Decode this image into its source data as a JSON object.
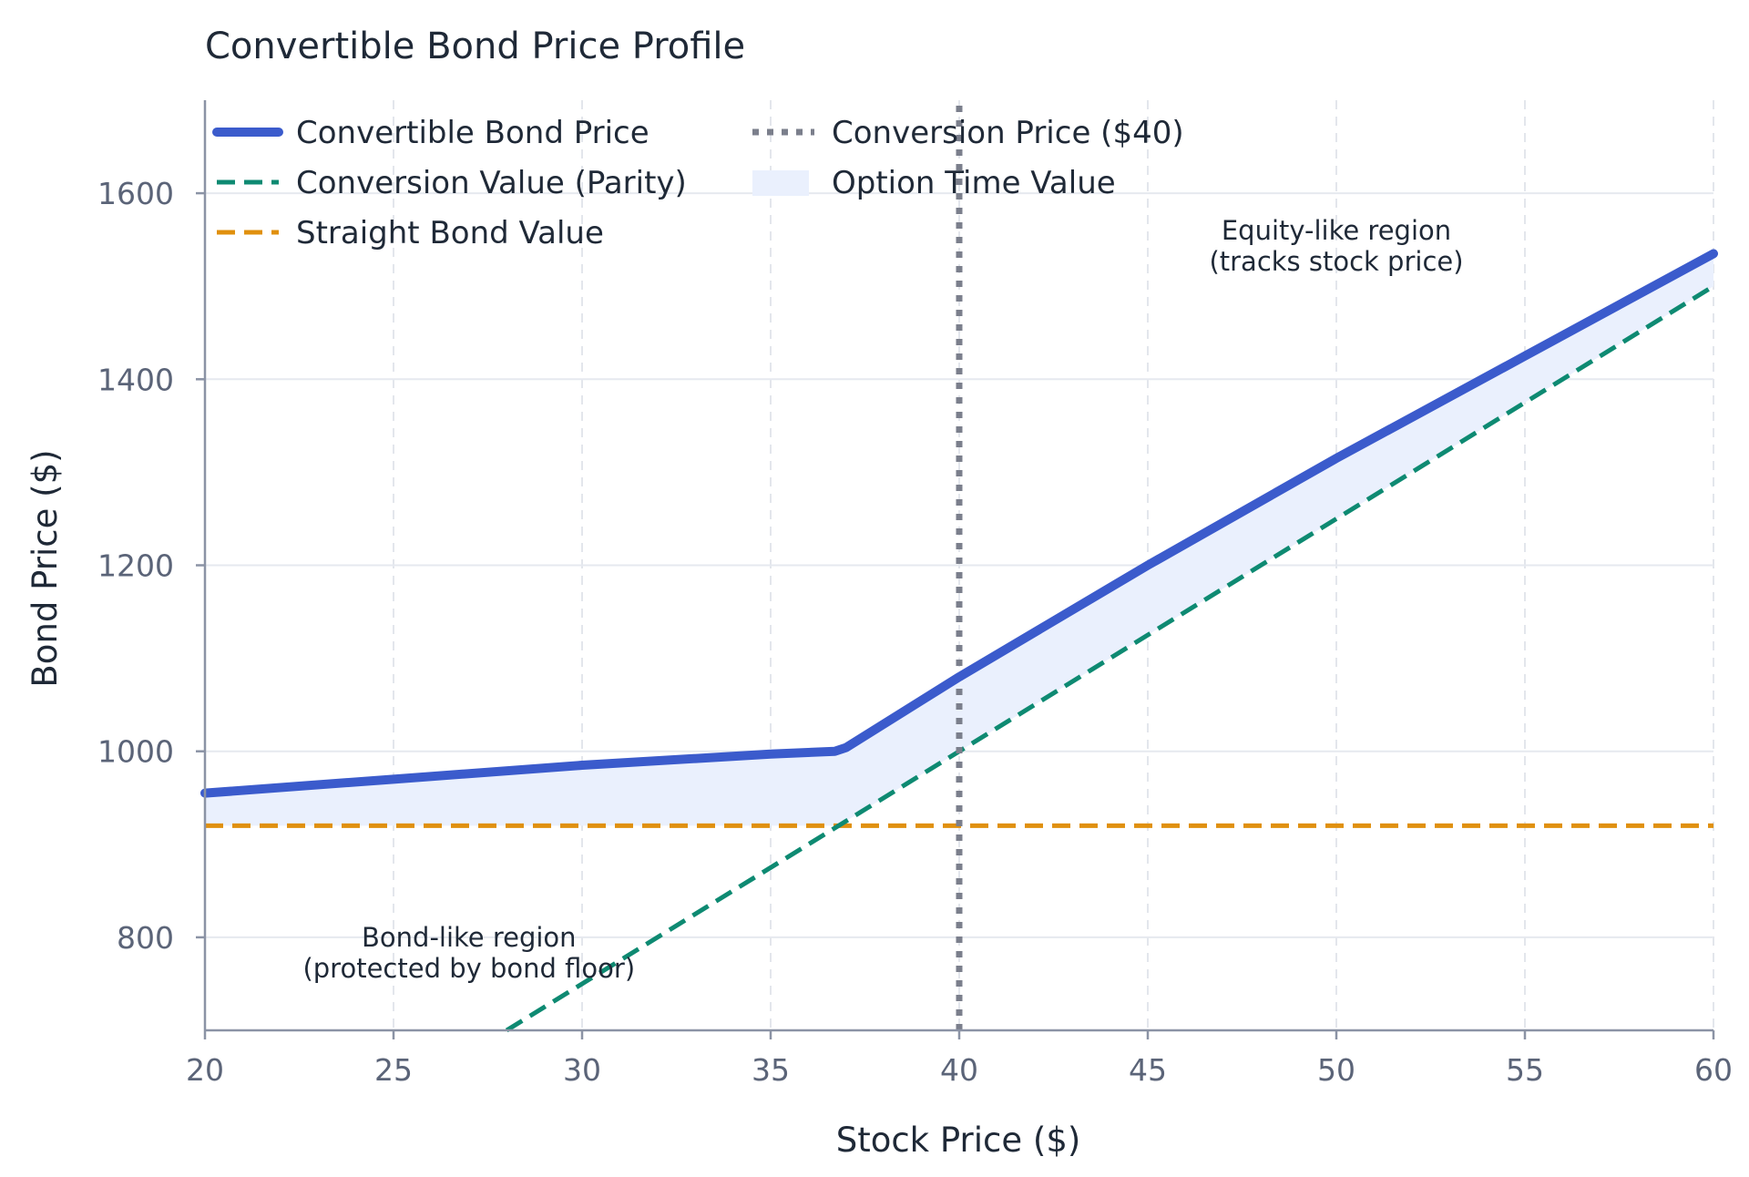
{
  "chart_data": {
    "type": "line",
    "title": "Convertible Bond Price Profile",
    "xlabel": "Stock Price ($)",
    "ylabel": "Bond Price ($)",
    "xlim": [
      20,
      60
    ],
    "ylim": [
      700,
      1700
    ],
    "x_ticks": [
      20,
      25,
      30,
      35,
      40,
      45,
      50,
      55,
      60
    ],
    "y_ticks": [
      800,
      1000,
      1200,
      1400,
      1600
    ],
    "grid": true,
    "legend_position": "top-left",
    "series": [
      {
        "name": "Convertible Bond Price",
        "style": "solid",
        "color": "#3b5bcc",
        "x": [
          20,
          25,
          30,
          35,
          36.7,
          37,
          40,
          45,
          50,
          55,
          60
        ],
        "y": [
          955,
          970,
          985,
          997,
          1000,
          1004,
          1080,
          1200,
          1315,
          1425,
          1535
        ]
      },
      {
        "name": "Conversion Value (Parity)",
        "style": "dashed",
        "color": "#0e8a72",
        "x": [
          28,
          60
        ],
        "y": [
          700,
          1500
        ]
      },
      {
        "name": "Straight Bond Value",
        "style": "dashed",
        "color": "#e0900e",
        "x": [
          20,
          60
        ],
        "y": [
          920,
          920
        ]
      },
      {
        "name": "Conversion Price ($40)",
        "style": "dotted",
        "color": "#7b7f8c",
        "x": [
          40,
          40
        ],
        "y": [
          700,
          1700
        ]
      }
    ],
    "fill": {
      "name": "Option Time Value",
      "color": "#eaf0fd"
    },
    "annotations": [
      {
        "lines": [
          "Equity-like region",
          "(tracks stock price)"
        ],
        "x": 50,
        "y": 1550
      },
      {
        "lines": [
          "Bond-like region",
          "(protected by bond floor)"
        ],
        "x": 27,
        "y": 790
      }
    ]
  }
}
